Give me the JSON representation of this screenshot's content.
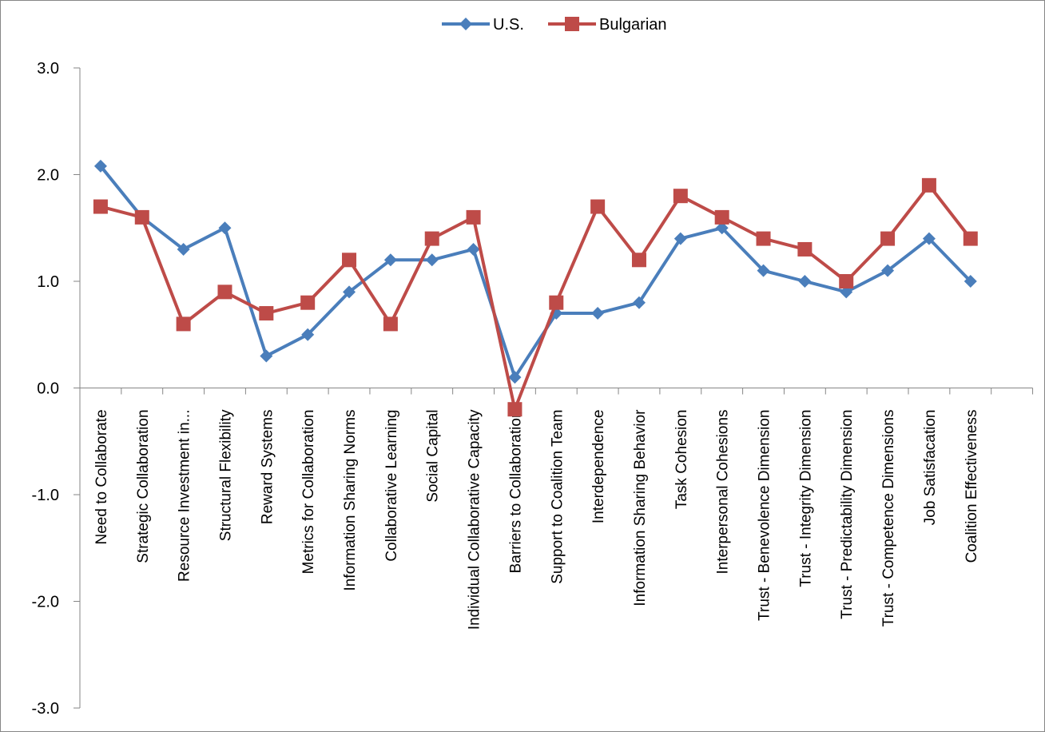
{
  "chart_data": {
    "type": "line",
    "title": "",
    "xlabel": "",
    "ylabel": "",
    "ylim": [
      -3.0,
      3.0
    ],
    "yticks": [
      "3.0",
      "2.0",
      "1.0",
      "0.0",
      "-1.0",
      "-2.0",
      "-3.0"
    ],
    "grid": false,
    "legend_position": "top",
    "categories": [
      "Need to Collaborate",
      "Strategic Collaboration",
      "Resource Investment in...",
      "Structural Flexibility",
      "Reward Systems",
      "Metrics for Collaboration",
      "Information Sharing Norms",
      "Collaborative Learning",
      "Social Capital",
      "Individual Collaborative Capacity",
      "Barriers to Collaboration",
      "Support to Coalition Team",
      "Interdependence",
      "Information Sharing Behavior",
      "Task Cohesion",
      "Interpersonal Cohesions",
      "Trust - Benevolence Dimension",
      "Trust - Integrity Dimension",
      "Trust - Predictability Dimension",
      "Trust - Competence  Dimensions",
      "Job Satisfacation",
      "Coalition Effectiveness"
    ],
    "series": [
      {
        "name": "U.S.",
        "color": "#4a7ebb",
        "marker": "diamond",
        "values": [
          2.08,
          1.6,
          1.3,
          1.5,
          0.3,
          0.5,
          0.9,
          1.2,
          1.2,
          1.3,
          0.1,
          0.7,
          0.7,
          0.8,
          1.4,
          1.5,
          1.1,
          1.0,
          0.9,
          1.1,
          1.4,
          1.0
        ]
      },
      {
        "name": "Bulgarian",
        "color": "#be4b48",
        "marker": "square",
        "values": [
          1.7,
          1.6,
          0.6,
          0.9,
          0.7,
          0.8,
          1.2,
          0.6,
          1.4,
          1.6,
          -0.2,
          0.8,
          1.7,
          1.2,
          1.8,
          1.6,
          1.4,
          1.3,
          1.0,
          1.4,
          1.9,
          1.4
        ]
      }
    ]
  }
}
